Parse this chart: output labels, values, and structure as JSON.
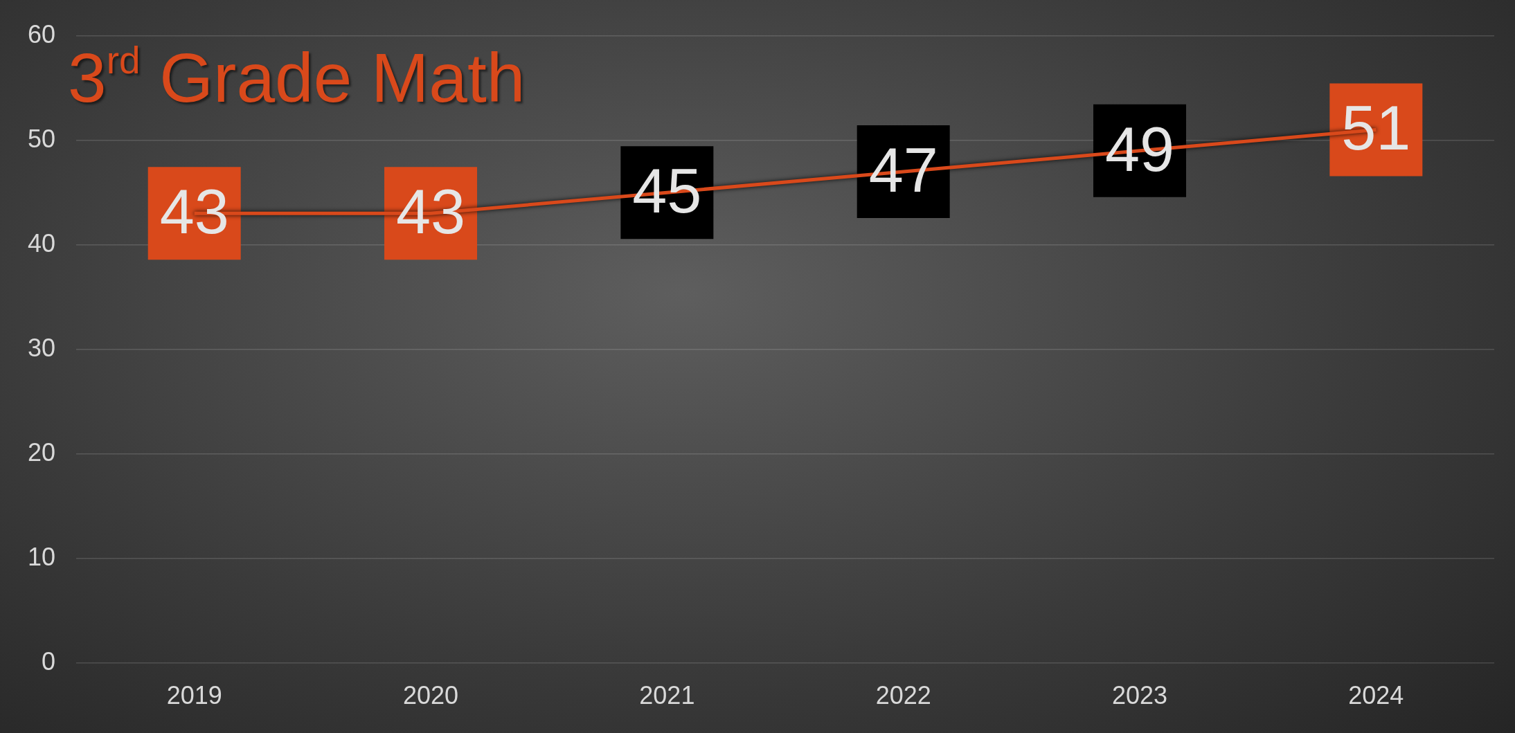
{
  "chart_data": {
    "type": "line",
    "title": "3$^{rd}$ Grade Math",
    "categories": [
      "2019",
      "2020",
      "2021",
      "2022",
      "2023",
      "2024"
    ],
    "series": [
      {
        "color": "#d9491b",
        "values": [
          43,
          43,
          45,
          47,
          49,
          51
        ],
        "colors": [
          "#d9491b",
          "#d9491b",
          "#000000",
          "#000000",
          "#000000",
          "#d9491b"
        ]
      }
    ],
    "ylim": [
      0,
      60
    ],
    "yticks": [
      0,
      10,
      20,
      30,
      40,
      50,
      60
    ],
    "grid": "y",
    "legend": false,
    "line_style": "solid",
    "data_labels": true
  }
}
